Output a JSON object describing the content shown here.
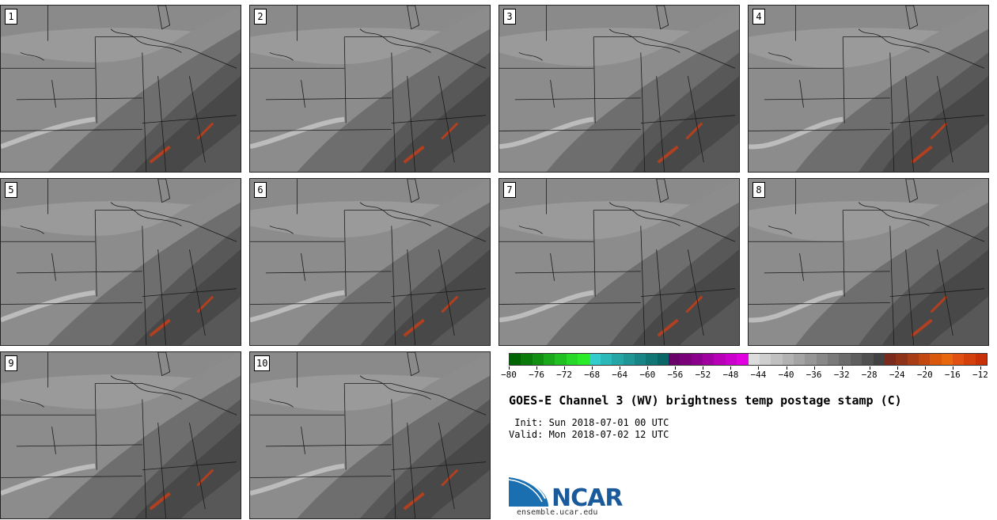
{
  "panels": [
    {
      "label": "1"
    },
    {
      "label": "2"
    },
    {
      "label": "3"
    },
    {
      "label": "4"
    },
    {
      "label": "5"
    },
    {
      "label": "6"
    },
    {
      "label": "7"
    },
    {
      "label": "8"
    },
    {
      "label": "9"
    },
    {
      "label": "10"
    }
  ],
  "colorbar": {
    "colors": [
      "#006400",
      "#0a7a0a",
      "#118f11",
      "#19a819",
      "#20c020",
      "#28d828",
      "#2aeb2a",
      "#33cccc",
      "#2bb8b8",
      "#24a6a6",
      "#1e9696",
      "#178585",
      "#107575",
      "#0a6666",
      "#6a006a",
      "#7a007a",
      "#8b008b",
      "#a000a0",
      "#b800b8",
      "#cc00cc",
      "#e000e0",
      "#dcdcdc",
      "#cecece",
      "#c0c0c0",
      "#b2b2b2",
      "#a4a4a4",
      "#969696",
      "#888888",
      "#7a7a7a",
      "#6c6c6c",
      "#5e5e5e",
      "#505050",
      "#424242",
      "#7a2a1a",
      "#8f3318",
      "#a83d15",
      "#c24810",
      "#d9580c",
      "#e8670c",
      "#e05010",
      "#d4400c",
      "#c83008"
    ],
    "tick_labels": [
      "−80",
      "−76",
      "−72",
      "−68",
      "−64",
      "−60",
      "−56",
      "−52",
      "−48",
      "−44",
      "−40",
      "−36",
      "−32",
      "−28",
      "−24",
      "−20",
      "−16",
      "−12"
    ]
  },
  "title": "GOES-E Channel 3 (WV) brightness temp postage stamp (C)",
  "init": " Init: Sun 2018-07-01 00 UTC",
  "valid": "Valid: Mon 2018-07-02 12 UTC",
  "logo": {
    "text": "NCAR",
    "site": "ensemble.ucar.edu",
    "color": "#1a5a9a"
  }
}
